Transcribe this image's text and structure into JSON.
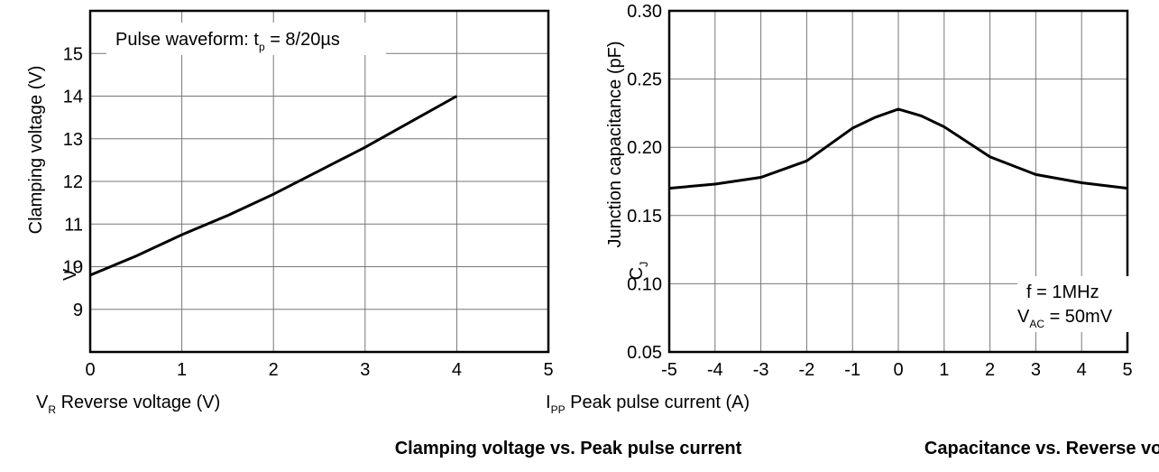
{
  "chart_data": [
    {
      "type": "line",
      "annotation": "Pulse waveform: t",
      "annotation_sub": "p",
      "annotation_tail": " = 8/20µs",
      "ylabel": "Clamping voltage (V)",
      "ylabel_short": "V",
      "ylabel_short_sub": "C",
      "xlabel": "I",
      "xlabel_sub": "PP",
      "xlabel_tail": " Peak pulse current (A)",
      "caption": "Clamping voltage vs. Peak pulse current",
      "ylim": [
        8,
        16
      ],
      "yticks": [
        "9",
        "10",
        "11",
        "12",
        "13",
        "14",
        "15"
      ],
      "ytick_values": [
        9,
        10,
        11,
        12,
        13,
        14,
        15
      ],
      "xlim": [
        0,
        5
      ],
      "xticks": [
        "0",
        "1",
        "2",
        "3",
        "4",
        "5"
      ],
      "xtick_values": [
        0,
        1,
        2,
        3,
        4,
        5
      ],
      "grid": true,
      "series": [
        {
          "x": [
            0,
            0.5,
            1,
            1.5,
            2,
            2.5,
            3,
            3.5,
            4
          ],
          "y": [
            9.8,
            10.25,
            10.75,
            11.2,
            11.7,
            12.25,
            12.8,
            13.4,
            14.0
          ]
        }
      ]
    },
    {
      "type": "line",
      "ylabel": "Junction capacitance (pF)",
      "ylabel_short": "C",
      "ylabel_short_sub": "J",
      "xlabel": "V",
      "xlabel_sub": "R",
      "xlabel_tail": " Reverse voltage (V)",
      "caption": "Capacitance vs. Reverse voltage",
      "legend_line1": "f = 1MHz",
      "legend_line2_a": "V",
      "legend_line2_sub": "AC",
      "legend_line2_b": " = 50mV",
      "ylim": [
        0.05,
        0.3
      ],
      "yticks": [
        "0.05",
        "0.10",
        "0.15",
        "0.20",
        "0.25",
        "0.30"
      ],
      "ytick_values": [
        0.05,
        0.1,
        0.15,
        0.2,
        0.25,
        0.3
      ],
      "xlim": [
        -5,
        5
      ],
      "xticks": [
        "-5",
        "-4",
        "-3",
        "-2",
        "-1",
        "0",
        "1",
        "2",
        "3",
        "4",
        "5"
      ],
      "xtick_values": [
        -5,
        -4,
        -3,
        -2,
        -1,
        0,
        1,
        2,
        3,
        4,
        5
      ],
      "grid": true,
      "series": [
        {
          "x": [
            -5,
            -4,
            -3,
            -2,
            -1,
            -0.5,
            0,
            0.5,
            1,
            2,
            3,
            4,
            5
          ],
          "y": [
            0.17,
            0.173,
            0.178,
            0.19,
            0.214,
            0.222,
            0.228,
            0.223,
            0.215,
            0.193,
            0.18,
            0.174,
            0.17
          ]
        }
      ]
    }
  ]
}
